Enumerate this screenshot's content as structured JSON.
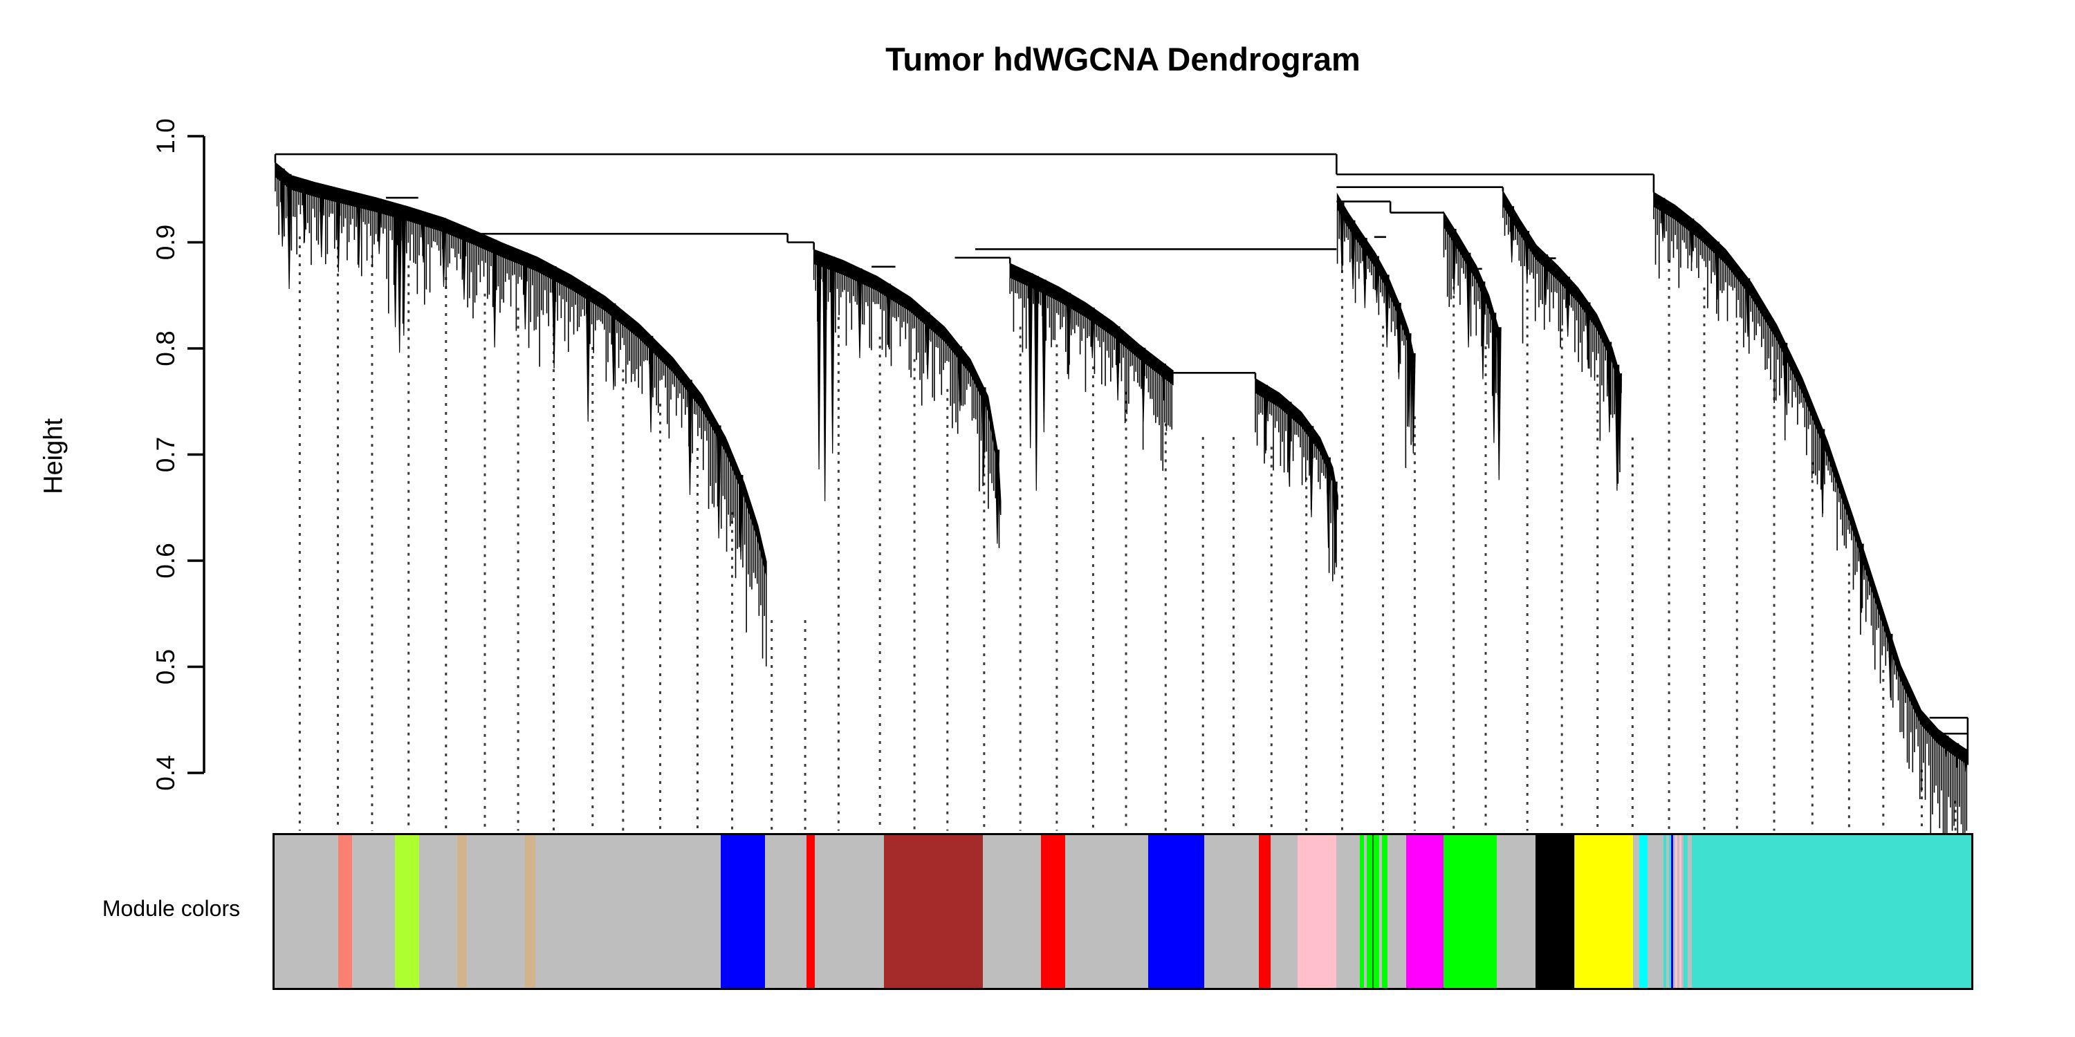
{
  "title": "Tumor hdWGCNA Dendrogram",
  "y_axis": {
    "label": "Height",
    "ticks": [
      "1.0",
      "0.9",
      "0.8",
      "0.7",
      "0.6",
      "0.5",
      "0.4"
    ]
  },
  "color_bar": {
    "label": "Module colors"
  },
  "chart_data": {
    "type": "dendrogram",
    "title": "Tumor hdWGCNA Dendrogram",
    "ylabel": "Height",
    "ylim": [
      0.4,
      1.0
    ],
    "yticks": [
      1.0,
      0.9,
      0.8,
      0.7,
      0.6,
      0.5,
      0.4
    ],
    "grid": false,
    "root_height": 0.983,
    "leaf_hair_spacing_px": 2.6,
    "guide_lines": {
      "count": 47,
      "from": 0.0165,
      "to": 0.9905,
      "bottom_h": 0.3455,
      "offset_below_envelope": 0.055,
      "color": "#3a3a3a"
    },
    "connectors": [
      {
        "h": 0.983,
        "f0": 0.0008,
        "f1": 0.6258,
        "dropL": 0.975,
        "dropR": 0.964
      },
      {
        "h": 0.964,
        "f0": 0.6258,
        "f1": 0.8126,
        "dropR": 0.947
      },
      {
        "h": 0.952,
        "f0": 0.6258,
        "f1": 0.7238,
        "dropR": 0.948
      },
      {
        "h": 0.9385,
        "f0": 0.6258,
        "f1": 0.6575,
        "dropR": 0.928
      },
      {
        "h": 0.928,
        "f0": 0.6575,
        "f1": 0.689
      },
      {
        "h": 0.942,
        "f0": 0.066,
        "f1": 0.085
      },
      {
        "h": 0.908,
        "f0": 0.118,
        "f1": 0.3025,
        "dropR": 0.9
      },
      {
        "h": 0.9,
        "f0": 0.3025,
        "f1": 0.318,
        "dropR": 0.893
      },
      {
        "h": 0.877,
        "f0": 0.352,
        "f1": 0.366
      },
      {
        "h": 0.8855,
        "f0": 0.401,
        "f1": 0.4335,
        "dropR": 0.88
      },
      {
        "h": 0.8935,
        "f0": 0.413,
        "f1": 0.6258
      },
      {
        "h": 0.777,
        "f0": 0.5295,
        "f1": 0.578,
        "dropR": 0.7715
      },
      {
        "h": 0.905,
        "f0": 0.648,
        "f1": 0.655
      },
      {
        "h": 0.875,
        "f0": 0.708,
        "f1": 0.7115
      },
      {
        "h": 0.885,
        "f0": 0.7465,
        "f1": 0.755
      },
      {
        "h": 0.452,
        "f0": 0.975,
        "f1": 0.9975,
        "dropR": 0.408
      },
      {
        "h": 0.437,
        "f0": 0.981,
        "f1": 0.9975
      }
    ],
    "fans": [
      {
        "name": "left-main-fan",
        "f0": 0.0008,
        "f1": 0.29,
        "env": [
          [
            0.0008,
            0.975
          ],
          [
            0.01,
            0.963
          ],
          [
            0.025,
            0.956
          ],
          [
            0.04,
            0.95
          ],
          [
            0.06,
            0.942
          ],
          [
            0.08,
            0.933
          ],
          [
            0.1,
            0.923
          ],
          [
            0.118,
            0.911
          ],
          [
            0.135,
            0.899
          ],
          [
            0.155,
            0.886
          ],
          [
            0.175,
            0.869
          ],
          [
            0.195,
            0.849
          ],
          [
            0.215,
            0.823
          ],
          [
            0.235,
            0.791
          ],
          [
            0.252,
            0.756
          ],
          [
            0.266,
            0.716
          ],
          [
            0.277,
            0.673
          ],
          [
            0.285,
            0.633
          ],
          [
            0.29,
            0.599
          ]
        ],
        "spikes": [
          [
            0.005,
            0.896
          ],
          [
            0.009,
            0.856
          ],
          [
            0.018,
            0.9
          ],
          [
            0.028,
            0.886
          ],
          [
            0.038,
            0.872
          ],
          [
            0.05,
            0.876
          ],
          [
            0.062,
            0.889
          ],
          [
            0.0715,
            0.82
          ],
          [
            0.074,
            0.796
          ],
          [
            0.0765,
            0.812
          ],
          [
            0.088,
            0.881
          ],
          [
            0.1,
            0.858
          ],
          [
            0.112,
            0.846
          ],
          [
            0.13,
            0.801
          ],
          [
            0.148,
            0.818
          ],
          [
            0.165,
            0.781
          ],
          [
            0.185,
            0.731
          ],
          [
            0.2,
            0.761
          ],
          [
            0.222,
            0.721
          ],
          [
            0.245,
            0.662
          ],
          [
            0.262,
            0.621
          ],
          [
            0.275,
            0.601
          ]
        ]
      },
      {
        "name": "second-fan",
        "f0": 0.318,
        "f1": 0.428,
        "env": [
          [
            0.318,
            0.893
          ],
          [
            0.335,
            0.883
          ],
          [
            0.355,
            0.868
          ],
          [
            0.375,
            0.848
          ],
          [
            0.395,
            0.82
          ],
          [
            0.41,
            0.79
          ],
          [
            0.4205,
            0.755
          ],
          [
            0.4265,
            0.7
          ],
          [
            0.428,
            0.656
          ]
        ],
        "spikes": [
          [
            0.321,
            0.686
          ],
          [
            0.3245,
            0.656
          ],
          [
            0.329,
            0.701
          ],
          [
            0.345,
            0.791
          ],
          [
            0.362,
            0.801
          ],
          [
            0.385,
            0.771
          ],
          [
            0.404,
            0.741
          ],
          [
            0.418,
            0.681
          ],
          [
            0.426,
            0.616
          ]
        ]
      },
      {
        "name": "third-fan-upper",
        "f0": 0.4335,
        "f1": 0.5295,
        "env": [
          [
            0.4335,
            0.88
          ],
          [
            0.447,
            0.87
          ],
          [
            0.462,
            0.858
          ],
          [
            0.478,
            0.843
          ],
          [
            0.494,
            0.825
          ],
          [
            0.51,
            0.803
          ],
          [
            0.5295,
            0.779
          ]
        ],
        "spikes": [
          [
            0.4455,
            0.706
          ],
          [
            0.449,
            0.666
          ],
          [
            0.4535,
            0.721
          ],
          [
            0.468,
            0.771
          ],
          [
            0.482,
            0.791
          ],
          [
            0.497,
            0.751
          ],
          [
            0.512,
            0.731
          ],
          [
            0.524,
            0.751
          ]
        ]
      },
      {
        "name": "third-fan-lower",
        "f0": 0.578,
        "f1": 0.6265,
        "env": [
          [
            0.578,
            0.7715
          ],
          [
            0.592,
            0.758
          ],
          [
            0.605,
            0.74
          ],
          [
            0.616,
            0.716
          ],
          [
            0.6235,
            0.688
          ],
          [
            0.6265,
            0.661
          ]
        ],
        "spikes": [
          [
            0.584,
            0.701
          ],
          [
            0.598,
            0.672
          ],
          [
            0.611,
            0.641
          ],
          [
            0.621,
            0.612
          ],
          [
            0.625,
            0.598
          ]
        ]
      },
      {
        "name": "right-fan-a",
        "f0": 0.6263,
        "f1": 0.6716,
        "env": [
          [
            0.6263,
            0.945
          ],
          [
            0.6325,
            0.928
          ],
          [
            0.64,
            0.91
          ],
          [
            0.6485,
            0.89
          ],
          [
            0.656,
            0.868
          ],
          [
            0.6625,
            0.843
          ],
          [
            0.668,
            0.818
          ],
          [
            0.6716,
            0.791
          ]
        ],
        "spikes": [
          [
            0.629,
            0.871
          ],
          [
            0.6355,
            0.856
          ],
          [
            0.6425,
            0.838
          ],
          [
            0.6495,
            0.843
          ],
          [
            0.6555,
            0.801
          ],
          [
            0.6625,
            0.771
          ],
          [
            0.6685,
            0.726
          ],
          [
            0.671,
            0.701
          ]
        ]
      },
      {
        "name": "right-fan-b",
        "f0": 0.689,
        "f1": 0.7225,
        "env": [
          [
            0.689,
            0.928
          ],
          [
            0.698,
            0.905
          ],
          [
            0.708,
            0.878
          ],
          [
            0.7155,
            0.85
          ],
          [
            0.721,
            0.82
          ]
        ],
        "spikes": [
          [
            0.695,
            0.851
          ],
          [
            0.7035,
            0.801
          ],
          [
            0.712,
            0.771
          ],
          [
            0.7185,
            0.711
          ],
          [
            0.7215,
            0.676
          ]
        ]
      },
      {
        "name": "right-fan-c",
        "f0": 0.7238,
        "f1": 0.7935,
        "env": [
          [
            0.7238,
            0.948
          ],
          [
            0.7335,
            0.922
          ],
          [
            0.7435,
            0.897
          ],
          [
            0.756,
            0.878
          ],
          [
            0.768,
            0.857
          ],
          [
            0.779,
            0.832
          ],
          [
            0.788,
            0.801
          ],
          [
            0.7935,
            0.771
          ]
        ],
        "spikes": [
          [
            0.729,
            0.881
          ],
          [
            0.738,
            0.861
          ],
          [
            0.749,
            0.841
          ],
          [
            0.762,
            0.811
          ],
          [
            0.774,
            0.781
          ],
          [
            0.7865,
            0.721
          ],
          [
            0.791,
            0.666
          ],
          [
            0.7925,
            0.691
          ]
        ]
      },
      {
        "name": "waterfall-fan",
        "f0": 0.8126,
        "f1": 0.9975,
        "env": [
          [
            0.8126,
            0.947
          ],
          [
            0.825,
            0.935
          ],
          [
            0.84,
            0.916
          ],
          [
            0.855,
            0.893
          ],
          [
            0.87,
            0.862
          ],
          [
            0.885,
            0.822
          ],
          [
            0.9,
            0.772
          ],
          [
            0.915,
            0.712
          ],
          [
            0.93,
            0.641
          ],
          [
            0.945,
            0.566
          ],
          [
            0.958,
            0.501
          ],
          [
            0.97,
            0.459
          ],
          [
            0.98,
            0.441
          ],
          [
            0.99,
            0.429
          ],
          [
            0.9975,
            0.421
          ]
        ],
        "spikes": [
          [
            0.818,
            0.901
          ],
          [
            0.835,
            0.881
          ],
          [
            0.85,
            0.846
          ],
          [
            0.868,
            0.811
          ],
          [
            0.89,
            0.741
          ],
          [
            0.912,
            0.641
          ],
          [
            0.935,
            0.551
          ],
          [
            0.952,
            0.471
          ],
          [
            0.985,
            0.415
          ],
          [
            0.991,
            0.405
          ],
          [
            0.996,
            0.401
          ]
        ]
      }
    ],
    "modules": [
      {
        "name": "grey",
        "color": "#BEBEBE",
        "from": 0.0,
        "to": 0.0375
      },
      {
        "name": "salmon",
        "color": "#FA8072",
        "from": 0.0375,
        "to": 0.0456
      },
      {
        "name": "grey",
        "color": "#BEBEBE",
        "from": 0.0456,
        "to": 0.0709
      },
      {
        "name": "greenyellow",
        "color": "#ADFF2F",
        "from": 0.0709,
        "to": 0.0851
      },
      {
        "name": "grey",
        "color": "#BEBEBE",
        "from": 0.0851,
        "to": 0.1075
      },
      {
        "name": "tan",
        "color": "#D2B48C",
        "from": 0.1075,
        "to": 0.1132
      },
      {
        "name": "grey",
        "color": "#BEBEBE",
        "from": 0.1132,
        "to": 0.1474
      },
      {
        "name": "tan",
        "color": "#D2B48C",
        "from": 0.1474,
        "to": 0.1535
      },
      {
        "name": "grey",
        "color": "#BEBEBE",
        "from": 0.1535,
        "to": 0.2631
      },
      {
        "name": "blue",
        "color": "#0000FF",
        "from": 0.2631,
        "to": 0.2892
      },
      {
        "name": "grey",
        "color": "#BEBEBE",
        "from": 0.2892,
        "to": 0.3136
      },
      {
        "name": "red",
        "color": "#FF0000",
        "from": 0.3136,
        "to": 0.3185
      },
      {
        "name": "grey",
        "color": "#BEBEBE",
        "from": 0.3185,
        "to": 0.3593
      },
      {
        "name": "brown",
        "color": "#A52A2A",
        "from": 0.3593,
        "to": 0.4175
      },
      {
        "name": "grey",
        "color": "#BEBEBE",
        "from": 0.4175,
        "to": 0.4517
      },
      {
        "name": "red",
        "color": "#FF0000",
        "from": 0.4517,
        "to": 0.466
      },
      {
        "name": "grey",
        "color": "#BEBEBE",
        "from": 0.466,
        "to": 0.5148
      },
      {
        "name": "blue",
        "color": "#0000FF",
        "from": 0.5148,
        "to": 0.5478
      },
      {
        "name": "grey",
        "color": "#BEBEBE",
        "from": 0.5478,
        "to": 0.58
      },
      {
        "name": "red",
        "color": "#FF0000",
        "from": 0.58,
        "to": 0.5869
      },
      {
        "name": "grey",
        "color": "#BEBEBE",
        "from": 0.5869,
        "to": 0.6028
      },
      {
        "name": "pink",
        "color": "#FFC0CB",
        "from": 0.6028,
        "to": 0.6256
      },
      {
        "name": "grey",
        "color": "#BEBEBE",
        "from": 0.6256,
        "to": 0.6395
      },
      {
        "name": "green",
        "color": "#00FF00",
        "from": 0.6395,
        "to": 0.642
      },
      {
        "name": "grey",
        "color": "#BEBEBE",
        "from": 0.642,
        "to": 0.6436
      },
      {
        "name": "green",
        "color": "#00FF00",
        "from": 0.6436,
        "to": 0.6469
      },
      {
        "name": "darkgreen",
        "color": "#006400",
        "from": 0.6469,
        "to": 0.6477
      },
      {
        "name": "green",
        "color": "#00FF00",
        "from": 0.6477,
        "to": 0.651
      },
      {
        "name": "grey",
        "color": "#BEBEBE",
        "from": 0.651,
        "to": 0.6526
      },
      {
        "name": "green",
        "color": "#00FF00",
        "from": 0.6526,
        "to": 0.6558
      },
      {
        "name": "grey",
        "color": "#BEBEBE",
        "from": 0.6558,
        "to": 0.6668
      },
      {
        "name": "magenta",
        "color": "#FF00FF",
        "from": 0.6668,
        "to": 0.6888
      },
      {
        "name": "green",
        "color": "#00FF00",
        "from": 0.6888,
        "to": 0.7202
      },
      {
        "name": "grey",
        "color": "#BEBEBE",
        "from": 0.7202,
        "to": 0.743
      },
      {
        "name": "black",
        "color": "#000000",
        "from": 0.743,
        "to": 0.7658
      },
      {
        "name": "yellow",
        "color": "#FFFF00",
        "from": 0.7666,
        "to": 0.8007
      },
      {
        "name": "grey",
        "color": "#BEBEBE",
        "from": 0.8007,
        "to": 0.8044
      },
      {
        "name": "cyan",
        "color": "#00FFFF",
        "from": 0.8044,
        "to": 0.8093
      },
      {
        "name": "grey",
        "color": "#BEBEBE",
        "from": 0.8093,
        "to": 0.8187
      },
      {
        "name": "turquoise",
        "color": "#40E0D0",
        "from": 0.8187,
        "to": 0.8203
      },
      {
        "name": "grey",
        "color": "#BEBEBE",
        "from": 0.8203,
        "to": 0.8219
      },
      {
        "name": "turquoise",
        "color": "#40E0D0",
        "from": 0.8219,
        "to": 0.8231
      },
      {
        "name": "blue",
        "color": "#0000FF",
        "from": 0.8231,
        "to": 0.8243
      },
      {
        "name": "grey",
        "color": "#BEBEBE",
        "from": 0.8243,
        "to": 0.8255
      },
      {
        "name": "pink",
        "color": "#FFC0CB",
        "from": 0.8255,
        "to": 0.8268
      },
      {
        "name": "grey",
        "color": "#BEBEBE",
        "from": 0.8268,
        "to": 0.828
      },
      {
        "name": "pink",
        "color": "#FFC0CB",
        "from": 0.828,
        "to": 0.8292
      },
      {
        "name": "grey",
        "color": "#BEBEBE",
        "from": 0.8292,
        "to": 0.8305
      },
      {
        "name": "turquoise",
        "color": "#40E0D0",
        "from": 0.8305,
        "to": 0.8329
      },
      {
        "name": "grey",
        "color": "#BEBEBE",
        "from": 0.8329,
        "to": 0.8354
      },
      {
        "name": "turquoise",
        "color": "#40E0D0",
        "from": 0.8354,
        "to": 1.0
      }
    ]
  },
  "layout_colors": {
    "axis": "#000000",
    "dendrogram": "#000000",
    "background": "#FFFFFF"
  }
}
